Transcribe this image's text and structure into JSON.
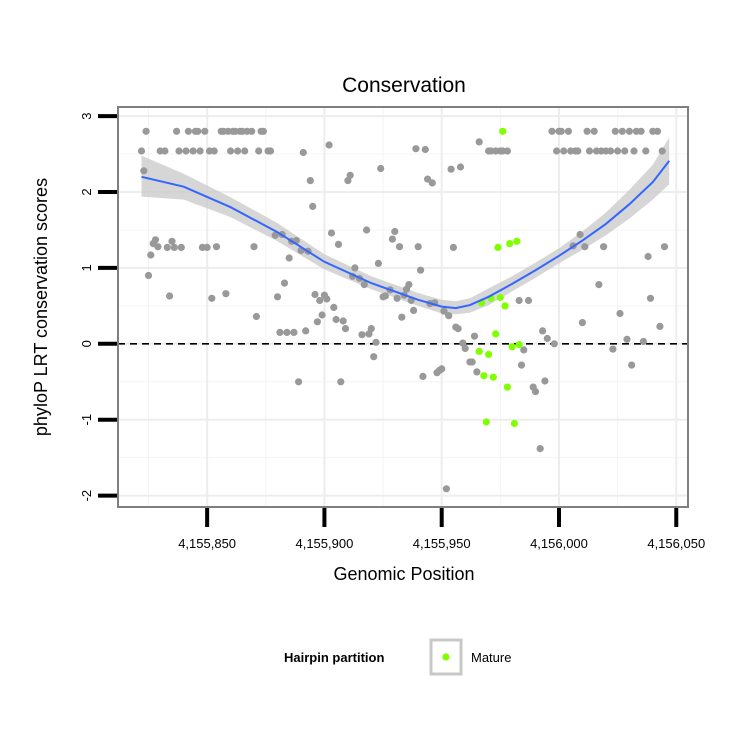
{
  "chart_data": {
    "type": "scatter",
    "title": "Conservation",
    "xlabel": "Genomic Position",
    "ylabel": "phyloP LRT conservation scores",
    "xlim": [
      4155812,
      4156055
    ],
    "ylim": [
      -2.15,
      3.12
    ],
    "x_ticks": [
      4155850,
      4155900,
      4155950,
      4156000,
      4156050
    ],
    "x_tick_labels": [
      "4,155,850",
      "4,155,900",
      "4,155,950",
      "4,156,000",
      "4,156,050"
    ],
    "y_ticks": [
      -2,
      -1,
      0,
      1,
      2,
      3
    ],
    "y_tick_labels": [
      "-2",
      "-1",
      "0",
      "1",
      "2",
      "3"
    ],
    "grid": true,
    "reference_line": {
      "y": 0,
      "style": "dashed"
    },
    "colors": {
      "other": "#999999",
      "mature": "#80ff00",
      "smooth": "#3366ff",
      "ribbon": "#c8c8c8",
      "panel_border": "#7f7f7f"
    },
    "legend": {
      "title": "Hairpin partition",
      "placement": "bottom",
      "entries": [
        "Mature"
      ]
    },
    "series": [
      {
        "name": "",
        "color": "#999999",
        "points": [
          [
            4155822,
            2.54
          ],
          [
            4155823,
            2.28
          ],
          [
            4155824,
            2.8
          ],
          [
            4155825,
            0.9
          ],
          [
            4155826,
            1.17
          ],
          [
            4155827,
            1.32
          ],
          [
            4155828,
            1.37
          ],
          [
            4155829,
            1.28
          ],
          [
            4155830,
            2.54
          ],
          [
            4155832,
            2.54
          ],
          [
            4155833,
            1.27
          ],
          [
            4155834,
            0.63
          ],
          [
            4155835,
            1.35
          ],
          [
            4155836,
            1.27
          ],
          [
            4155837,
            2.8
          ],
          [
            4155838,
            2.54
          ],
          [
            4155839,
            1.27
          ],
          [
            4155841,
            2.54
          ],
          [
            4155842,
            2.8
          ],
          [
            4155844,
            2.54
          ],
          [
            4155845,
            2.8
          ],
          [
            4155846,
            2.8
          ],
          [
            4155847,
            2.54
          ],
          [
            4155848,
            1.27
          ],
          [
            4155849,
            2.8
          ],
          [
            4155850,
            1.27
          ],
          [
            4155851,
            2.54
          ],
          [
            4155852,
            0.6
          ],
          [
            4155853,
            2.54
          ],
          [
            4155854,
            1.28
          ],
          [
            4155856,
            2.8
          ],
          [
            4155857,
            2.8
          ],
          [
            4155858,
            0.66
          ],
          [
            4155859,
            2.8
          ],
          [
            4155860,
            2.54
          ],
          [
            4155861,
            2.8
          ],
          [
            4155862,
            2.8
          ],
          [
            4155863,
            2.54
          ],
          [
            4155864,
            2.8
          ],
          [
            4155865,
            2.8
          ],
          [
            4155866,
            2.54
          ],
          [
            4155867,
            2.8
          ],
          [
            4155869,
            2.8
          ],
          [
            4155870,
            1.28
          ],
          [
            4155871,
            0.36
          ],
          [
            4155872,
            2.54
          ],
          [
            4155873,
            2.8
          ],
          [
            4155874,
            2.8
          ],
          [
            4155876,
            2.54
          ],
          [
            4155877,
            2.54
          ],
          [
            4155879,
            1.43
          ],
          [
            4155880,
            0.62
          ],
          [
            4155881,
            0.15
          ],
          [
            4155882,
            1.44
          ],
          [
            4155883,
            0.8
          ],
          [
            4155884,
            0.15
          ],
          [
            4155885,
            1.13
          ],
          [
            4155886,
            1.35
          ],
          [
            4155887,
            0.15
          ],
          [
            4155888,
            1.36
          ],
          [
            4155889,
            -0.5
          ],
          [
            4155890,
            1.23
          ],
          [
            4155891,
            2.52
          ],
          [
            4155892,
            0.17
          ],
          [
            4155893,
            1.22
          ],
          [
            4155894,
            2.15
          ],
          [
            4155895,
            1.81
          ],
          [
            4155896,
            0.65
          ],
          [
            4155897,
            0.29
          ],
          [
            4155898,
            0.57
          ],
          [
            4155899,
            0.38
          ],
          [
            4155900,
            0.64
          ],
          [
            4155901,
            0.59
          ],
          [
            4155902,
            2.62
          ],
          [
            4155903,
            1.46
          ],
          [
            4155904,
            0.48
          ],
          [
            4155905,
            0.32
          ],
          [
            4155906,
            1.31
          ],
          [
            4155907,
            -0.5
          ],
          [
            4155908,
            0.3
          ],
          [
            4155909,
            0.2
          ],
          [
            4155910,
            2.15
          ],
          [
            4155911,
            2.22
          ],
          [
            4155912,
            0.89
          ],
          [
            4155913,
            1.0
          ],
          [
            4155915,
            0.86
          ],
          [
            4155916,
            0.12
          ],
          [
            4155917,
            0.78
          ],
          [
            4155918,
            1.5
          ],
          [
            4155919,
            0.13
          ],
          [
            4155920,
            0.2
          ],
          [
            4155921,
            -0.17
          ],
          [
            4155922,
            0.02
          ],
          [
            4155923,
            1.06
          ],
          [
            4155924,
            2.31
          ],
          [
            4155925,
            0.62
          ],
          [
            4155926,
            0.63
          ],
          [
            4155928,
            0.71
          ],
          [
            4155929,
            1.38
          ],
          [
            4155930,
            1.48
          ],
          [
            4155931,
            0.6
          ],
          [
            4155932,
            1.28
          ],
          [
            4155933,
            0.35
          ],
          [
            4155934,
            0.64
          ],
          [
            4155935,
            0.72
          ],
          [
            4155936,
            0.78
          ],
          [
            4155937,
            0.57
          ],
          [
            4155938,
            0.44
          ],
          [
            4155939,
            2.57
          ],
          [
            4155940,
            1.28
          ],
          [
            4155941,
            0.97
          ],
          [
            4155942,
            -0.43
          ],
          [
            4155943,
            2.56
          ],
          [
            4155944,
            2.17
          ],
          [
            4155945,
            0.53
          ],
          [
            4155946,
            2.12
          ],
          [
            4155947,
            0.54
          ],
          [
            4155948,
            -0.38
          ],
          [
            4155949,
            -0.35
          ],
          [
            4155950,
            -0.33
          ],
          [
            4155951,
            0.43
          ],
          [
            4155952,
            -1.91
          ],
          [
            4155953,
            0.37
          ],
          [
            4155954,
            2.3
          ],
          [
            4155955,
            1.27
          ],
          [
            4155956,
            0.22
          ],
          [
            4155957,
            0.2
          ],
          [
            4155958,
            2.33
          ],
          [
            4155959,
            0.01
          ],
          [
            4155960,
            -0.06
          ],
          [
            4155962,
            -0.24
          ],
          [
            4155963,
            -0.24
          ],
          [
            4155964,
            0.1
          ],
          [
            4155965,
            -0.37
          ],
          [
            4155966,
            2.66
          ],
          [
            4155970,
            2.54
          ],
          [
            4155971,
            2.54
          ],
          [
            4155973,
            2.54
          ],
          [
            4155975,
            2.54
          ],
          [
            4155976,
            2.54
          ],
          [
            4155978,
            2.54
          ],
          [
            4155983,
            0.57
          ],
          [
            4155984,
            -0.28
          ],
          [
            4155985,
            -0.08
          ],
          [
            4155987,
            0.57
          ],
          [
            4155989,
            -0.57
          ],
          [
            4155990,
            -0.63
          ],
          [
            4155992,
            -1.38
          ],
          [
            4155993,
            0.17
          ],
          [
            4155994,
            -0.49
          ],
          [
            4155995,
            0.07
          ],
          [
            4155997,
            2.8
          ],
          [
            4155998,
            0.0
          ],
          [
            4155999,
            2.54
          ],
          [
            4156000,
            2.8
          ],
          [
            4156001,
            2.8
          ],
          [
            4156002,
            2.54
          ],
          [
            4156004,
            2.8
          ],
          [
            4156005,
            2.54
          ],
          [
            4156006,
            1.29
          ],
          [
            4156007,
            2.54
          ],
          [
            4156008,
            2.54
          ],
          [
            4156009,
            1.44
          ],
          [
            4156010,
            0.28
          ],
          [
            4156011,
            1.28
          ],
          [
            4156012,
            2.8
          ],
          [
            4156013,
            2.54
          ],
          [
            4156015,
            2.8
          ],
          [
            4156016,
            2.54
          ],
          [
            4156017,
            0.78
          ],
          [
            4156018,
            2.54
          ],
          [
            4156019,
            1.28
          ],
          [
            4156020,
            2.54
          ],
          [
            4156022,
            2.54
          ],
          [
            4156023,
            -0.07
          ],
          [
            4156024,
            2.8
          ],
          [
            4156025,
            2.54
          ],
          [
            4156026,
            0.4
          ],
          [
            4156027,
            2.8
          ],
          [
            4156028,
            2.54
          ],
          [
            4156029,
            0.06
          ],
          [
            4156030,
            2.8
          ],
          [
            4156031,
            -0.28
          ],
          [
            4156032,
            2.54
          ],
          [
            4156033,
            2.8
          ],
          [
            4156035,
            2.8
          ],
          [
            4156036,
            0.03
          ],
          [
            4156037,
            2.54
          ],
          [
            4156038,
            1.15
          ],
          [
            4156039,
            0.6
          ],
          [
            4156040,
            2.8
          ],
          [
            4156042,
            2.8
          ],
          [
            4156043,
            0.23
          ],
          [
            4156044,
            2.54
          ],
          [
            4156045,
            1.28
          ]
        ]
      },
      {
        "name": "Mature",
        "color": "#80ff00",
        "points": [
          [
            4155966,
            -0.1
          ],
          [
            4155967,
            0.54
          ],
          [
            4155968,
            -0.42
          ],
          [
            4155969,
            -1.03
          ],
          [
            4155970,
            -0.14
          ],
          [
            4155971,
            0.6
          ],
          [
            4155972,
            -0.44
          ],
          [
            4155973,
            0.13
          ],
          [
            4155974,
            1.27
          ],
          [
            4155975,
            0.61
          ],
          [
            4155976,
            2.8
          ],
          [
            4155977,
            0.5
          ],
          [
            4155978,
            -0.57
          ],
          [
            4155979,
            1.32
          ],
          [
            4155980,
            -0.04
          ],
          [
            4155981,
            -1.05
          ],
          [
            4155982,
            1.35
          ],
          [
            4155983,
            -0.01
          ]
        ]
      }
    ],
    "smooth": {
      "x": [
        4155822,
        4155840,
        4155860,
        4155880,
        4155900,
        4155920,
        4155940,
        4155950,
        4155956,
        4155962,
        4155970,
        4155980,
        4155990,
        4156000,
        4156010,
        4156020,
        4156030,
        4156040,
        4156047
      ],
      "y": [
        2.2,
        2.07,
        1.8,
        1.47,
        1.08,
        0.8,
        0.58,
        0.49,
        0.47,
        0.51,
        0.62,
        0.79,
        0.97,
        1.16,
        1.36,
        1.58,
        1.84,
        2.13,
        2.41
      ],
      "ci_lower": [
        1.94,
        1.9,
        1.67,
        1.35,
        0.98,
        0.72,
        0.5,
        0.4,
        0.39,
        0.41,
        0.51,
        0.69,
        0.87,
        1.06,
        1.24,
        1.43,
        1.65,
        1.9,
        2.1
      ],
      "ci_upper": [
        2.48,
        2.24,
        1.93,
        1.59,
        1.18,
        0.89,
        0.67,
        0.58,
        0.56,
        0.6,
        0.73,
        0.89,
        1.07,
        1.26,
        1.48,
        1.73,
        2.03,
        2.36,
        2.72
      ]
    }
  }
}
